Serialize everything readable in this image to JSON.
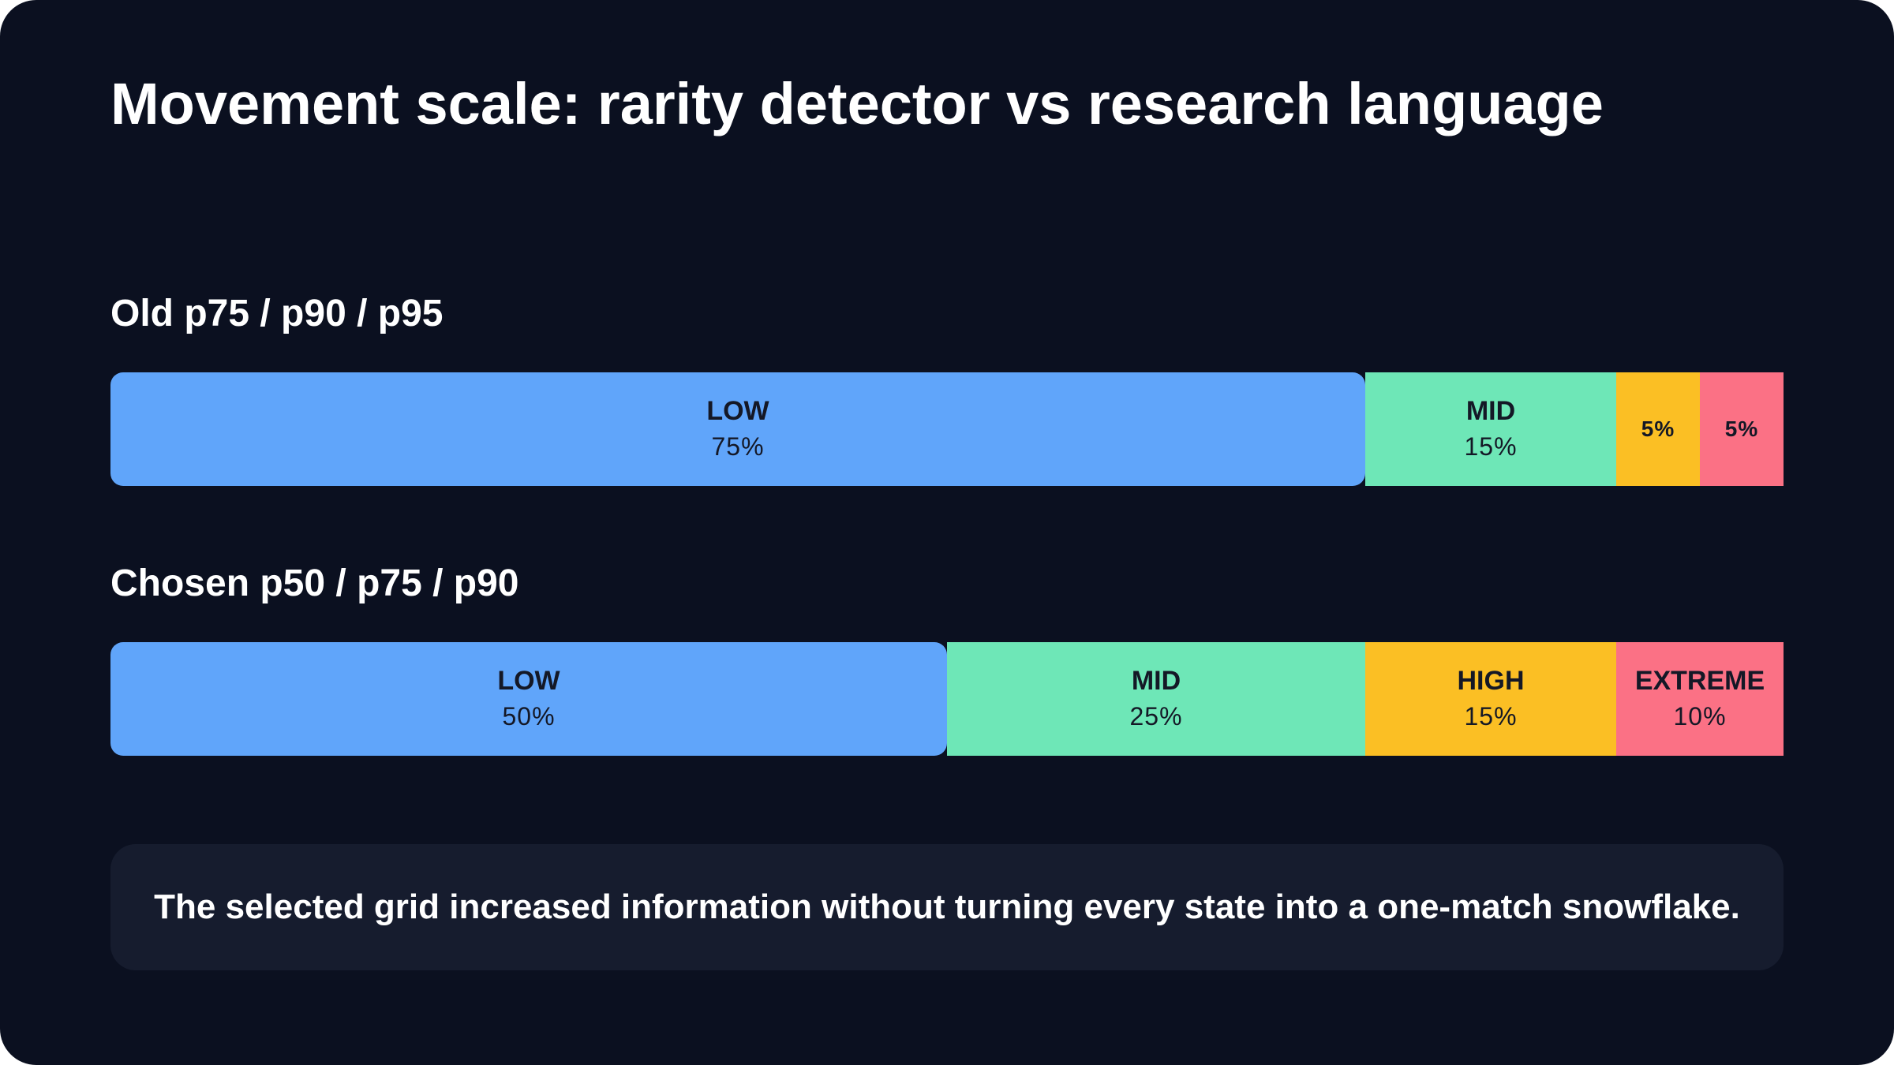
{
  "title": "Movement scale: rarity detector vs research language",
  "note": "The selected grid increased information without turning every state into a one-match snowflake.",
  "chart_data": {
    "type": "bar",
    "orientation": "horizontal-stacked-100",
    "title": "Movement scale: rarity detector vs research language",
    "categories": [
      "Old p75 / p90 / p95",
      "Chosen p50 / p75 / p90"
    ],
    "series": [
      {
        "name": "LOW",
        "values": [
          75,
          50
        ],
        "color": "#60a5fa"
      },
      {
        "name": "MID",
        "values": [
          15,
          25
        ],
        "color": "#6ee7b7"
      },
      {
        "name": "HIGH",
        "values": [
          5,
          15
        ],
        "color": "#fbbf24"
      },
      {
        "name": "EXTREME",
        "values": [
          5,
          10
        ],
        "color": "#fb7185"
      }
    ],
    "bars": [
      {
        "label": "Old p75 / p90 / p95",
        "segments": [
          {
            "name": "LOW",
            "label": "LOW",
            "value": 75,
            "value_text": "75%",
            "color": "#60a5fa"
          },
          {
            "name": "MID",
            "label": "MID",
            "value": 15,
            "value_text": "15%",
            "color": "#6ee7b7"
          },
          {
            "name": "HIGH",
            "label": "",
            "value": 5,
            "value_text": "5%",
            "color": "#fbbf24"
          },
          {
            "name": "EXTREME",
            "label": "",
            "value": 5,
            "value_text": "5%",
            "color": "#fb7185"
          }
        ]
      },
      {
        "label": "Chosen p50 / p75 / p90",
        "segments": [
          {
            "name": "LOW",
            "label": "LOW",
            "value": 50,
            "value_text": "50%",
            "color": "#60a5fa"
          },
          {
            "name": "MID",
            "label": "MID",
            "value": 25,
            "value_text": "25%",
            "color": "#6ee7b7"
          },
          {
            "name": "HIGH",
            "label": "HIGH",
            "value": 15,
            "value_text": "15%",
            "color": "#fbbf24"
          },
          {
            "name": "EXTREME",
            "label": "EXTREME",
            "value": 10,
            "value_text": "10%",
            "color": "#fb7185"
          }
        ]
      }
    ],
    "xlim": [
      0,
      100
    ],
    "grid": false,
    "legend": "none"
  },
  "colors": {
    "background": "#0b1020",
    "note_background": "#161c2e",
    "text": "#ffffff",
    "segment_text": "#141826"
  }
}
